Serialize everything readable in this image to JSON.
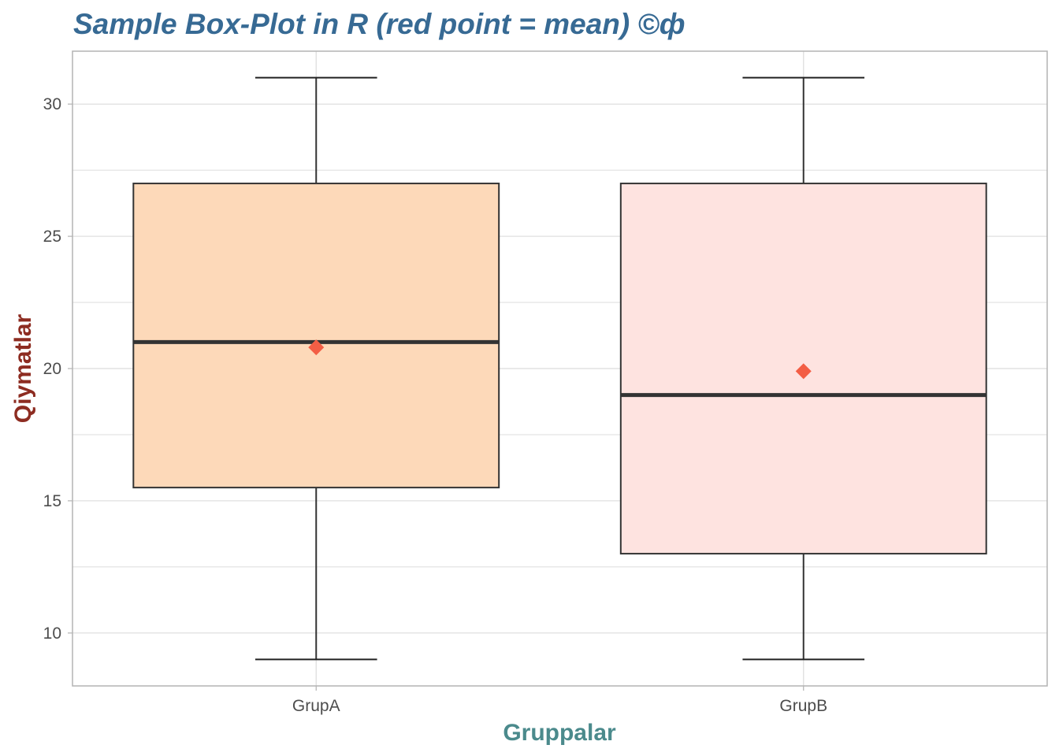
{
  "chart_data": {
    "type": "box",
    "title": "Sample Box-Plot in R (red point = mean) ©ф",
    "xlabel": "Gruppalar",
    "ylabel": "Qiymatlar",
    "ylim": [
      8,
      32
    ],
    "yticks": [
      10,
      15,
      20,
      25,
      30
    ],
    "grid": true,
    "categories": [
      "GrupA",
      "GrupB"
    ],
    "boxes": [
      {
        "name": "GrupA",
        "whisker_low": 9,
        "q1": 15.5,
        "median": 21,
        "q3": 27,
        "whisker_high": 31,
        "mean": 20.8,
        "fill": "#fdd9b9"
      },
      {
        "name": "GrupB",
        "whisker_low": 9,
        "q1": 13,
        "median": 19,
        "q3": 27,
        "whisker_high": 31,
        "mean": 19.9,
        "fill": "#fee3e0"
      }
    ],
    "mean_marker_color": "#f35e45",
    "colors": {
      "title": "#376a94",
      "xlabel": "#4b8a8c",
      "ylabel": "#8d2c21",
      "panel_border": "#b3b3b3",
      "grid": "#dcdcdc"
    }
  }
}
